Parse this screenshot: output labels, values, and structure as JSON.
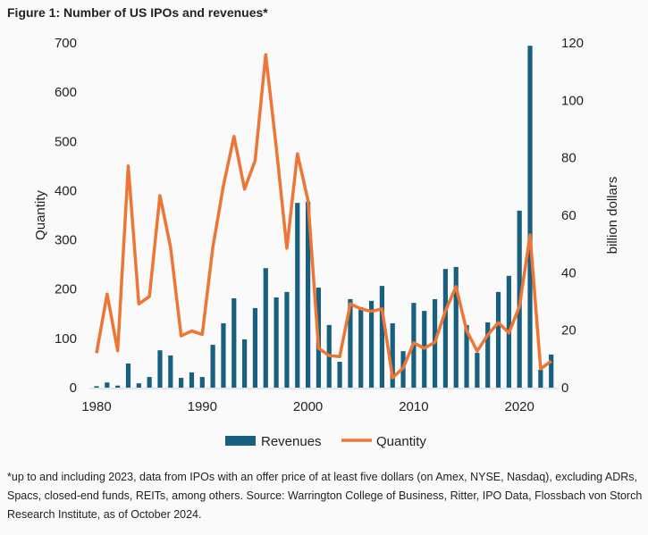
{
  "chart_data": {
    "type": "bar+line",
    "title": "Figure 1: Number of US IPOs and revenues*",
    "ylabel_left": "Quantity",
    "ylabel_right": "billion dollars",
    "ylim_left": [
      0,
      700
    ],
    "ylim_right": [
      0,
      120
    ],
    "yticks_left": [
      0,
      100,
      200,
      300,
      400,
      500,
      600,
      700
    ],
    "yticks_right": [
      0,
      20,
      40,
      60,
      80,
      100,
      120
    ],
    "xticks": [
      1980,
      1990,
      2000,
      2010,
      2020
    ],
    "x": [
      1980,
      1981,
      1982,
      1983,
      1984,
      1985,
      1986,
      1987,
      1988,
      1989,
      1990,
      1991,
      1992,
      1993,
      1994,
      1995,
      1996,
      1997,
      1998,
      1999,
      2000,
      2001,
      2002,
      2003,
      2004,
      2005,
      2006,
      2007,
      2008,
      2009,
      2010,
      2011,
      2012,
      2013,
      2014,
      2015,
      2016,
      2017,
      2018,
      2019,
      2020,
      2021,
      2022,
      2023
    ],
    "series": [
      {
        "name": "Revenues",
        "type": "bar",
        "axis": "right",
        "color": "#17607f",
        "values": [
          0.5,
          1.8,
          0.7,
          8.4,
          1.5,
          3.7,
          13,
          11.2,
          3.4,
          5.3,
          3.7,
          14.9,
          22.4,
          31.1,
          16.8,
          27.7,
          41.6,
          31.4,
          33.3,
          64.3,
          64.7,
          34.8,
          21.8,
          9.0,
          30.8,
          28,
          30.2,
          35.4,
          22.4,
          12.7,
          29.5,
          26.7,
          30.8,
          41.3,
          42,
          21.8,
          12.1,
          22.7,
          33.3,
          38.9,
          61.6,
          119,
          6.2,
          11.5
        ]
      },
      {
        "name": "Quantity",
        "type": "line",
        "axis": "left",
        "color": "#ed7535",
        "values": [
          70,
          190,
          75,
          450,
          170,
          185,
          390,
          285,
          105,
          115,
          108,
          285,
          410,
          510,
          403,
          461,
          676,
          488,
          283,
          475,
          380,
          80,
          65,
          63,
          170,
          160,
          155,
          160,
          20,
          40,
          91,
          80,
          92,
          156,
          205,
          116,
          74,
          107,
          132,
          111,
          165,
          310,
          38,
          54
        ]
      }
    ],
    "legend": "bottom",
    "grid": false
  },
  "footnote": "*up to and including 2023, data from IPOs with an offer price of at least five dollars (on Amex, NYSE, Nasdaq), excluding ADRs, Spacs, closed-end funds, REITs, among others. Source: Warrington College of Business, Ritter, IPO Data, Flossbach von Storch Research Institute, as of October 2024."
}
